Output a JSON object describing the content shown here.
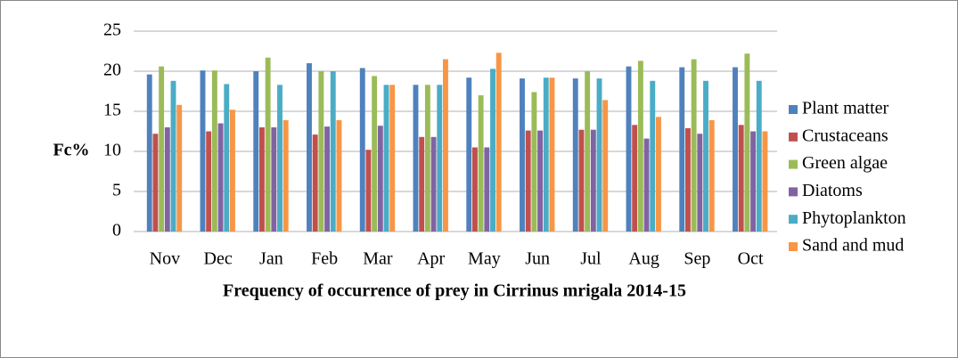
{
  "chart_data": {
    "type": "bar",
    "title": "Frequency of occurrence of prey  in Cirrinus mrigala 2014-15",
    "y_label": "Fc%",
    "categories": [
      "Nov",
      "Dec",
      "Jan",
      "Feb",
      "Mar",
      "Apr",
      "May",
      "Jun",
      "Jul",
      "Aug",
      "Sep",
      "Oct"
    ],
    "series": [
      {
        "name": "Plant matter",
        "color": "#4f81bd",
        "values": [
          19.6,
          20.1,
          20.0,
          21.0,
          20.4,
          18.3,
          19.2,
          19.1,
          19.1,
          20.6,
          20.5,
          20.5
        ]
      },
      {
        "name": "Crustaceans",
        "color": "#c0504d",
        "values": [
          12.2,
          12.5,
          13.0,
          12.1,
          10.2,
          11.8,
          10.5,
          12.6,
          12.7,
          13.3,
          12.9,
          13.3
        ]
      },
      {
        "name": "Green algae",
        "color": "#9bbb59",
        "values": [
          20.6,
          20.1,
          21.7,
          20.0,
          19.4,
          18.3,
          17.0,
          17.4,
          20.0,
          21.3,
          21.5,
          22.2
        ]
      },
      {
        "name": "Diatoms",
        "color": "#8064a2",
        "values": [
          13.0,
          13.5,
          13.0,
          13.1,
          13.2,
          11.8,
          10.5,
          12.6,
          12.7,
          11.6,
          12.2,
          12.5
        ]
      },
      {
        "name": "Phytoplankton",
        "color": "#4bacc6",
        "values": [
          18.8,
          18.4,
          18.3,
          20.0,
          18.3,
          18.3,
          20.3,
          19.2,
          19.1,
          18.8,
          18.8,
          18.8
        ]
      },
      {
        "name": "Sand and mud",
        "color": "#f79646",
        "values": [
          15.8,
          15.2,
          13.9,
          13.9,
          18.3,
          21.5,
          22.3,
          19.2,
          16.4,
          14.3,
          13.9,
          12.5
        ]
      }
    ],
    "ylim": [
      0,
      25
    ],
    "yticks": [
      0,
      5,
      10,
      15,
      20,
      25
    ],
    "grid": true,
    "legend": "right"
  }
}
